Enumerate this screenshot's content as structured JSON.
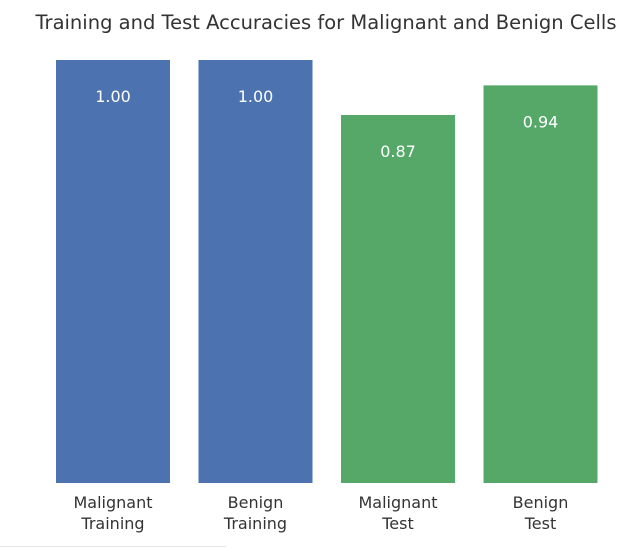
{
  "colors": {
    "training": "#4c72b0",
    "test": "#55a868",
    "label_on_bar": "#ffffff",
    "text": "#333333"
  },
  "chart_data": {
    "type": "bar",
    "title": "Training and Test Accuracies for Malignant and Benign Cells",
    "xlabel": "",
    "ylabel": "",
    "ylim": [
      0,
      1.0
    ],
    "grid": false,
    "categories": [
      [
        "Malignant",
        "Training"
      ],
      [
        "Benign",
        "Training"
      ],
      [
        "Malignant",
        "Test"
      ],
      [
        "Benign",
        "Test"
      ]
    ],
    "values": [
      1.0,
      1.0,
      0.87,
      0.94
    ],
    "value_labels": [
      "1.00",
      "1.00",
      "0.87",
      "0.94"
    ],
    "bar_colors": [
      "#4c72b0",
      "#4c72b0",
      "#55a868",
      "#55a868"
    ]
  }
}
